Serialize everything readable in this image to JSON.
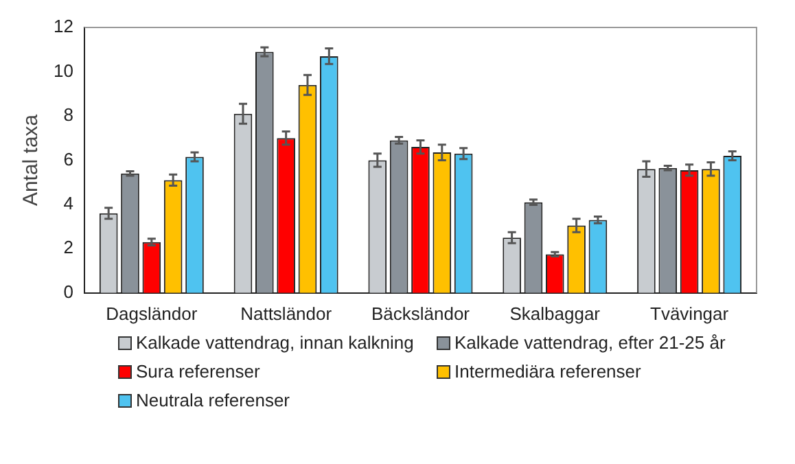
{
  "chart_data": {
    "type": "bar",
    "ylabel": "Antal taxa",
    "categories": [
      "Dagsländor",
      "Nattsländor",
      "Bäcksländor",
      "Skalbaggar",
      "Tvävingar"
    ],
    "ylim": [
      0,
      12
    ],
    "yticks": [
      0,
      2,
      4,
      6,
      8,
      10,
      12
    ],
    "grid": false,
    "legend": "bottom",
    "series": [
      {
        "name": "Kalkade vattendrag, innan kalkning",
        "color": "#c8ccd0",
        "values": [
          3.6,
          8.1,
          6.0,
          2.5,
          5.6
        ],
        "errors": [
          0.25,
          0.45,
          0.3,
          0.25,
          0.35
        ]
      },
      {
        "name": "Kalkade vattendrag, efter 21-25 år",
        "color": "#8a929a",
        "values": [
          5.4,
          10.9,
          6.9,
          4.1,
          5.65
        ],
        "errors": [
          0.1,
          0.2,
          0.15,
          0.12,
          0.1
        ]
      },
      {
        "name": "Sura referenser",
        "color": "#ff0000",
        "values": [
          2.3,
          7.0,
          6.6,
          1.75,
          5.55
        ],
        "errors": [
          0.15,
          0.3,
          0.3,
          0.1,
          0.25
        ]
      },
      {
        "name": "Intermediära referenser",
        "color": "#ffc000",
        "values": [
          5.1,
          9.4,
          6.35,
          3.05,
          5.6
        ],
        "errors": [
          0.25,
          0.45,
          0.35,
          0.3,
          0.3
        ]
      },
      {
        "name": "Neutrala referenser",
        "color": "#4fc3f0",
        "values": [
          6.15,
          10.7,
          6.3,
          3.3,
          6.2
        ],
        "errors": [
          0.2,
          0.35,
          0.25,
          0.15,
          0.2
        ]
      }
    ]
  }
}
